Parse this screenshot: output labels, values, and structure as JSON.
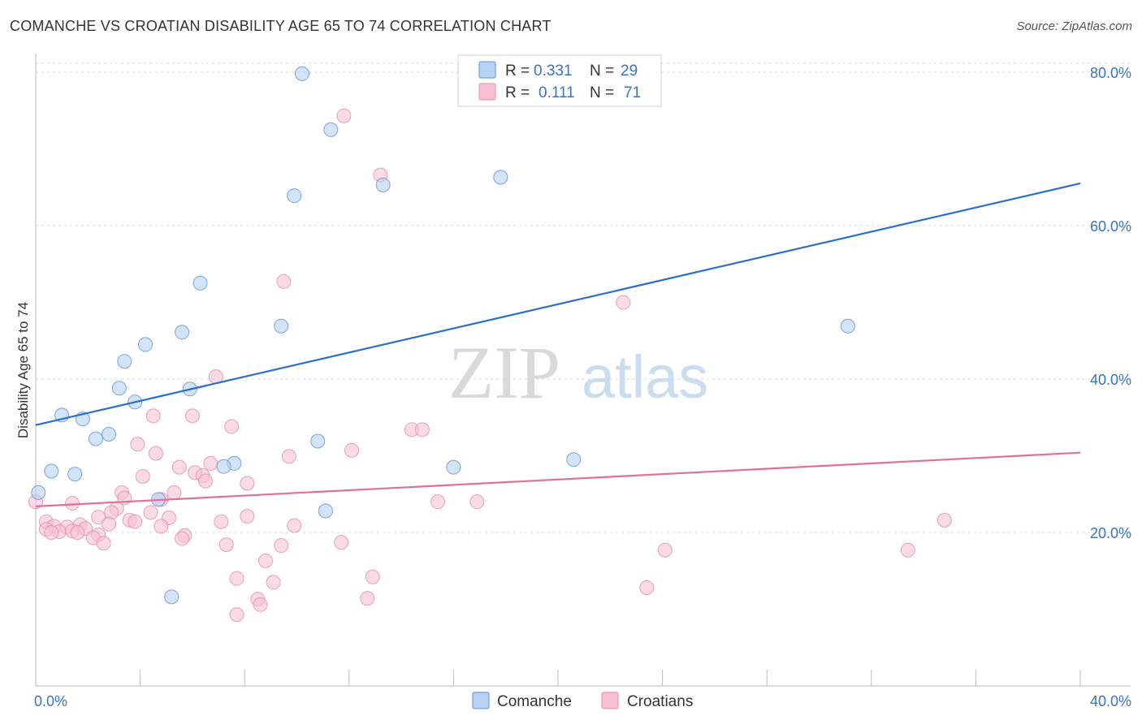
{
  "title": "COMANCHE VS CROATIAN DISABILITY AGE 65 TO 74 CORRELATION CHART",
  "source": "Source: ZipAtlas.com",
  "watermark": {
    "zip": "ZIP",
    "atlas": "atlas"
  },
  "colors": {
    "comanche_fill": "#b8d2f3",
    "comanche_stroke": "#5b8fd8",
    "comanche_line": "#2a6fd0",
    "croatian_fill": "#f7c1d3",
    "croatian_stroke": "#e58bab",
    "croatian_line": "#e0709a",
    "tick_text": "#3a72c4",
    "grid": "#d8d8d8"
  },
  "legend": {
    "rows": [
      {
        "r_label": "R =",
        "r_value": "0.331",
        "n_label": "N =",
        "n_value": "29"
      },
      {
        "r_label": "R =",
        "r_value": "0.111",
        "n_label": "N =",
        "n_value": "71"
      }
    ]
  },
  "chart_data": {
    "type": "scatter",
    "title": "COMANCHE VS CROATIAN DISABILITY AGE 65 TO 74 CORRELATION CHART",
    "xlabel": "",
    "ylabel": "Disability Age 65 to 74",
    "xlim": [
      0,
      40
    ],
    "ylim": [
      0,
      82
    ],
    "x_tick_labels": [
      "0.0%",
      "40.0%"
    ],
    "y_ticks": [
      20,
      40,
      60,
      80
    ],
    "y_tick_labels": [
      "20.0%",
      "40.0%",
      "60.0%",
      "80.0%"
    ],
    "series": [
      {
        "name": "Comanche",
        "r": 0.331,
        "n": 29,
        "trend": {
          "x": [
            0,
            40
          ],
          "y": [
            34.0,
            65.5
          ]
        },
        "points": [
          {
            "x": 10.2,
            "y": 79.8
          },
          {
            "x": 11.3,
            "y": 72.5
          },
          {
            "x": 9.9,
            "y": 63.9
          },
          {
            "x": 13.3,
            "y": 65.3
          },
          {
            "x": 17.8,
            "y": 66.3
          },
          {
            "x": 6.3,
            "y": 52.5
          },
          {
            "x": 9.4,
            "y": 46.9
          },
          {
            "x": 5.6,
            "y": 46.1
          },
          {
            "x": 4.2,
            "y": 44.5
          },
          {
            "x": 3.4,
            "y": 42.3
          },
          {
            "x": 3.2,
            "y": 38.8
          },
          {
            "x": 5.9,
            "y": 38.7
          },
          {
            "x": 3.8,
            "y": 37.0
          },
          {
            "x": 1.0,
            "y": 35.3
          },
          {
            "x": 1.8,
            "y": 34.8
          },
          {
            "x": 2.8,
            "y": 32.8
          },
          {
            "x": 2.3,
            "y": 32.2
          },
          {
            "x": 10.8,
            "y": 31.9
          },
          {
            "x": 7.6,
            "y": 29.0
          },
          {
            "x": 7.2,
            "y": 28.6
          },
          {
            "x": 16.0,
            "y": 28.5
          },
          {
            "x": 20.6,
            "y": 29.5
          },
          {
            "x": 0.6,
            "y": 28.0
          },
          {
            "x": 1.5,
            "y": 27.6
          },
          {
            "x": 0.1,
            "y": 25.2
          },
          {
            "x": 4.7,
            "y": 24.3
          },
          {
            "x": 11.1,
            "y": 22.8
          },
          {
            "x": 5.2,
            "y": 11.6
          },
          {
            "x": 31.1,
            "y": 46.9
          }
        ]
      },
      {
        "name": "Croatians",
        "r": 0.111,
        "n": 71,
        "trend": {
          "x": [
            0,
            40
          ],
          "y": [
            23.4,
            30.4
          ]
        },
        "points": [
          {
            "x": 11.8,
            "y": 74.3
          },
          {
            "x": 13.2,
            "y": 66.6
          },
          {
            "x": 9.5,
            "y": 52.7
          },
          {
            "x": 22.5,
            "y": 50.0
          },
          {
            "x": 6.9,
            "y": 40.3
          },
          {
            "x": 4.5,
            "y": 35.2
          },
          {
            "x": 6.0,
            "y": 35.2
          },
          {
            "x": 7.5,
            "y": 33.8
          },
          {
            "x": 14.4,
            "y": 33.4
          },
          {
            "x": 14.8,
            "y": 33.4
          },
          {
            "x": 3.9,
            "y": 31.5
          },
          {
            "x": 4.6,
            "y": 30.3
          },
          {
            "x": 12.1,
            "y": 30.7
          },
          {
            "x": 9.7,
            "y": 29.9
          },
          {
            "x": 6.7,
            "y": 29.0
          },
          {
            "x": 5.5,
            "y": 28.5
          },
          {
            "x": 6.1,
            "y": 27.8
          },
          {
            "x": 6.4,
            "y": 27.4
          },
          {
            "x": 4.1,
            "y": 27.3
          },
          {
            "x": 6.5,
            "y": 26.7
          },
          {
            "x": 8.1,
            "y": 26.4
          },
          {
            "x": 3.3,
            "y": 25.2
          },
          {
            "x": 5.3,
            "y": 25.2
          },
          {
            "x": 3.4,
            "y": 24.5
          },
          {
            "x": 4.8,
            "y": 24.3
          },
          {
            "x": 1.4,
            "y": 23.8
          },
          {
            "x": 15.4,
            "y": 24.0
          },
          {
            "x": 16.9,
            "y": 24.0
          },
          {
            "x": 3.1,
            "y": 23.1
          },
          {
            "x": 2.9,
            "y": 22.6
          },
          {
            "x": 4.4,
            "y": 22.6
          },
          {
            "x": 8.1,
            "y": 22.1
          },
          {
            "x": 2.4,
            "y": 22.0
          },
          {
            "x": 5.1,
            "y": 21.9
          },
          {
            "x": 3.6,
            "y": 21.6
          },
          {
            "x": 3.8,
            "y": 21.4
          },
          {
            "x": 7.1,
            "y": 21.4
          },
          {
            "x": 2.8,
            "y": 21.1
          },
          {
            "x": 9.9,
            "y": 20.9
          },
          {
            "x": 0.4,
            "y": 21.4
          },
          {
            "x": 0.7,
            "y": 20.8
          },
          {
            "x": 1.7,
            "y": 21.0
          },
          {
            "x": 1.2,
            "y": 20.7
          },
          {
            "x": 4.8,
            "y": 20.8
          },
          {
            "x": 1.9,
            "y": 20.5
          },
          {
            "x": 0.4,
            "y": 20.4
          },
          {
            "x": 0.9,
            "y": 20.1
          },
          {
            "x": 0.6,
            "y": 20.0
          },
          {
            "x": 1.4,
            "y": 20.2
          },
          {
            "x": 1.6,
            "y": 20.0
          },
          {
            "x": 2.4,
            "y": 19.7
          },
          {
            "x": 5.7,
            "y": 19.6
          },
          {
            "x": 2.2,
            "y": 19.3
          },
          {
            "x": 5.6,
            "y": 19.2
          },
          {
            "x": 2.6,
            "y": 18.6
          },
          {
            "x": 7.3,
            "y": 18.4
          },
          {
            "x": 9.4,
            "y": 18.3
          },
          {
            "x": 11.7,
            "y": 18.7
          },
          {
            "x": 24.1,
            "y": 17.7
          },
          {
            "x": 33.4,
            "y": 17.7
          },
          {
            "x": 34.8,
            "y": 21.6
          },
          {
            "x": 8.8,
            "y": 16.3
          },
          {
            "x": 7.7,
            "y": 14.0
          },
          {
            "x": 9.1,
            "y": 13.5
          },
          {
            "x": 12.9,
            "y": 14.2
          },
          {
            "x": 23.4,
            "y": 12.8
          },
          {
            "x": 8.5,
            "y": 11.3
          },
          {
            "x": 12.7,
            "y": 11.4
          },
          {
            "x": 8.6,
            "y": 10.6
          },
          {
            "x": 7.7,
            "y": 9.3
          },
          {
            "x": 0.0,
            "y": 24.0
          }
        ]
      }
    ],
    "legend": {
      "entries": [
        "Comanche",
        "Croatians"
      ],
      "placement": "bottom-center"
    }
  }
}
